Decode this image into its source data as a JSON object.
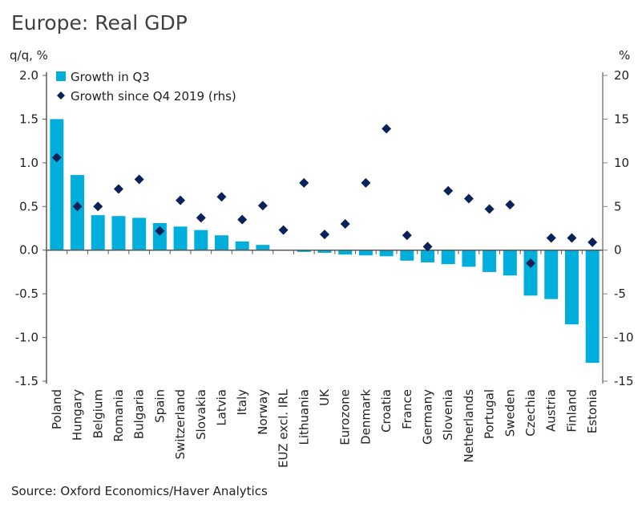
{
  "chart_data": {
    "type": "bar",
    "title": "Europe: Real GDP",
    "ylabel_left": "q/q, %",
    "ylabel_right": "%",
    "source": "Source: Oxford Economics/Haver Analytics",
    "categories": [
      "Poland",
      "Hungary",
      "Belgium",
      "Romania",
      "Bulgaria",
      "Spain",
      "Switzerland",
      "Slovakia",
      "Latvia",
      "Italy",
      "Norway",
      "EUZ excl. IRL",
      "Lithuania",
      "UK",
      "Eurozone",
      "Denmark",
      "Croatia",
      "France",
      "Germany",
      "Slovenia",
      "Netherlands",
      "Portugal",
      "Sweden",
      "Czechia",
      "Austria",
      "Finland",
      "Estonia"
    ],
    "series": [
      {
        "name": "Growth in Q3",
        "type": "bar",
        "axis": "left",
        "color": "#00AEDC",
        "values": [
          1.5,
          0.86,
          0.4,
          0.39,
          0.37,
          0.31,
          0.27,
          0.23,
          0.17,
          0.1,
          0.06,
          0.0,
          -0.02,
          -0.03,
          -0.05,
          -0.06,
          -0.07,
          -0.12,
          -0.14,
          -0.16,
          -0.19,
          -0.25,
          -0.29,
          -0.52,
          -0.56,
          -0.85,
          -1.29
        ]
      },
      {
        "name": "Growth since Q4 2019 (rhs)",
        "type": "scatter",
        "marker": "diamond",
        "axis": "right",
        "color": "#0A2159",
        "values": [
          10.6,
          5.0,
          5.0,
          7.0,
          8.1,
          2.2,
          5.7,
          3.7,
          6.1,
          3.5,
          5.1,
          2.3,
          7.7,
          1.8,
          3.0,
          7.7,
          13.9,
          1.7,
          0.4,
          6.8,
          5.9,
          4.7,
          5.2,
          -1.5,
          1.4,
          1.4,
          0.9
        ]
      }
    ],
    "ylim_left": [
      -1.5,
      2.0
    ],
    "yticks_left": [
      "2.0",
      "1.5",
      "1.0",
      "0.5",
      "0.0",
      "-0.5",
      "-1.0",
      "-1.5"
    ],
    "ylim_right": [
      -15,
      20
    ],
    "yticks_right": [
      "20",
      "15",
      "10",
      "5",
      "0",
      "-5",
      "-10",
      "-15"
    ],
    "grid": false,
    "legend_position": "top-left"
  }
}
